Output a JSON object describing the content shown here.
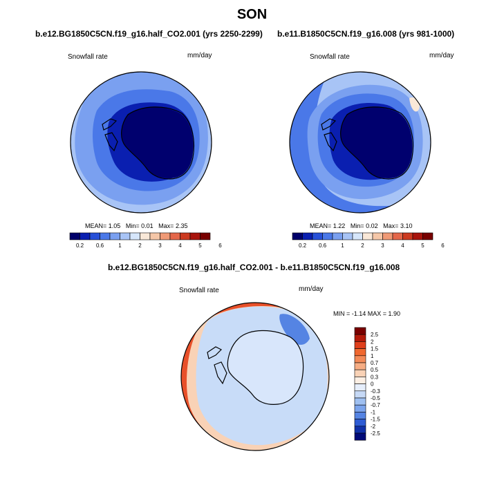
{
  "suptitle": "SON",
  "panels": [
    {
      "title": "b.e12.BG1850C5CN.f19_g16.half_CO2.001 (yrs 2250-2299)",
      "variable": "Snowfall rate",
      "units": "mm/day",
      "stats": {
        "mean_label": "MEAN=",
        "mean": "1.05",
        "min_label": "Min=",
        "min": "0.01",
        "max_label": "Max=",
        "max": "2.35"
      }
    },
    {
      "title": "b.e11.B1850C5CN.f19_g16.008 (yrs 981-1000)",
      "variable": "Snowfall rate",
      "units": "mm/day",
      "stats": {
        "mean_label": "MEAN=",
        "mean": "1.22",
        "min_label": "Min=",
        "min": "0.02",
        "max_label": "Max=",
        "max": "3.10"
      }
    },
    {
      "title": "b.e12.BG1850C5CN.f19_g16.half_CO2.001 - b.e11.B1850C5CN.f19_g16.008",
      "variable": "Snowfall rate",
      "units": "mm/day",
      "stats_text": "MIN = -1.14 MAX = 1.90"
    }
  ],
  "colorbar_abs": {
    "labels": [
      "0.2",
      "0.6",
      "1",
      "2",
      "3",
      "4",
      "5",
      "6"
    ],
    "colors": [
      "#00006a",
      "#0a1fb0",
      "#2750d8",
      "#4a78e8",
      "#7aa0f0",
      "#a8c4f6",
      "#d6e6fb",
      "#f9e8d8",
      "#f5c7a8",
      "#f09a76",
      "#e4674a",
      "#cc3a20",
      "#a8140c",
      "#780000"
    ]
  },
  "colorbar_diff": {
    "labels": [
      "2.5",
      "2",
      "1.5",
      "1",
      "0.7",
      "0.5",
      "0.3",
      "0",
      "-0.3",
      "-0.5",
      "-0.7",
      "-1",
      "-1.5",
      "-2",
      "-2.5"
    ],
    "colors": [
      "#7a0000",
      "#b41a0a",
      "#e0401c",
      "#f0682f",
      "#f38a58",
      "#f6ad84",
      "#f9d2b6",
      "#fcefe4",
      "#e6eefb",
      "#c6d9f6",
      "#9fc0f1",
      "#7ba4ec",
      "#5584e3",
      "#2e5cd4",
      "#1030a8",
      "#000a78"
    ]
  },
  "colors": {
    "land_dark": "#00006e",
    "ocean_blue": "#4d7ee6",
    "ocean_light": "#a9c6f7",
    "diff_ocean": "#c8dcf8",
    "diff_land": "#d8e6fb",
    "diff_rim": "#e8502a"
  }
}
